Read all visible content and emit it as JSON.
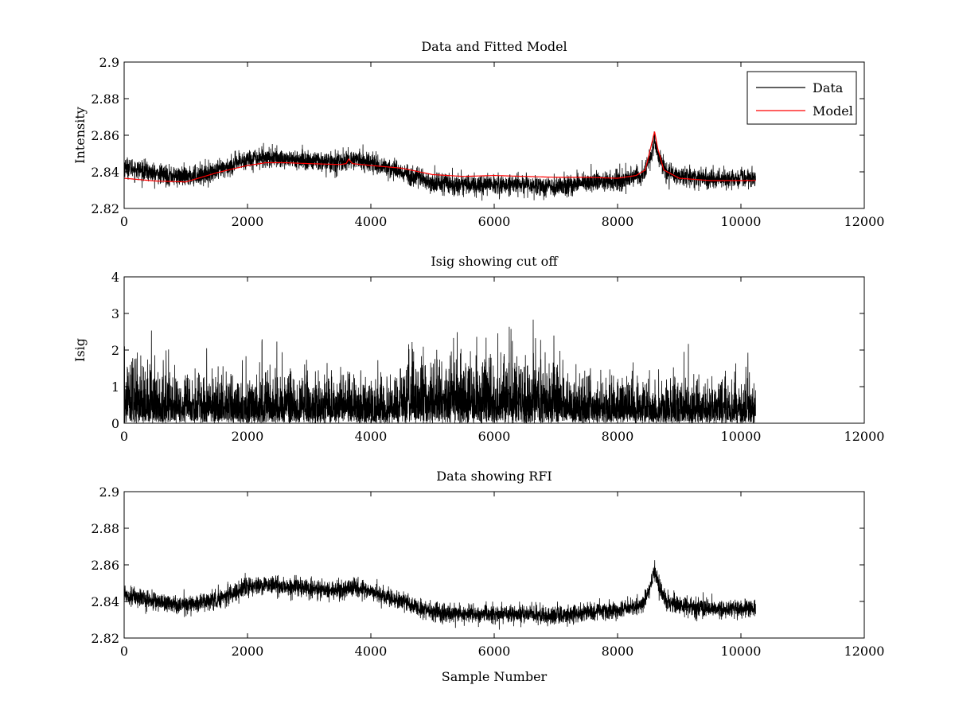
{
  "chart_data": [
    {
      "type": "line",
      "title": "Data and Fitted Model",
      "xlabel": "",
      "ylabel": "Intensity",
      "xlim": [
        0,
        12000
      ],
      "ylim": [
        2.82,
        2.9
      ],
      "xticks": [
        "0",
        "2000",
        "4000",
        "6000",
        "8000",
        "10000",
        "12000"
      ],
      "yticks": [
        "2.82",
        "2.84",
        "2.86",
        "2.88",
        "2.9"
      ],
      "legend": {
        "location": "top-right",
        "entries": [
          {
            "label": "Data",
            "color": "#000000"
          },
          {
            "label": "Model",
            "color": "#ff0000"
          }
        ]
      },
      "series": [
        {
          "name": "Data",
          "color": "#000000",
          "kind": "noisy",
          "n_samples": 10240,
          "noise_amplitude": 0.006,
          "baseline": {
            "x": [
              0,
              500,
              1000,
              1500,
              2000,
              2300,
              2600,
              3000,
              3500,
              3700,
              4000,
              4500,
              5000,
              5500,
              6000,
              6500,
              7000,
              7500,
              8000,
              8400,
              8550,
              8600,
              8650,
              8800,
              9000,
              9500,
              10000,
              10240
            ],
            "y": [
              2.843,
              2.839,
              2.837,
              2.84,
              2.847,
              2.848,
              2.847,
              2.846,
              2.845,
              2.847,
              2.845,
              2.84,
              2.834,
              2.833,
              2.833,
              2.833,
              2.832,
              2.834,
              2.835,
              2.838,
              2.85,
              2.858,
              2.85,
              2.839,
              2.838,
              2.836,
              2.836,
              2.837
            ]
          }
        },
        {
          "name": "Model",
          "color": "#ff0000",
          "kind": "smooth",
          "x": [
            0,
            500,
            1000,
            1500,
            2000,
            2300,
            2600,
            3000,
            3500,
            3600,
            3640,
            3700,
            4000,
            4500,
            5000,
            5500,
            6000,
            6500,
            7000,
            7500,
            8000,
            8300,
            8450,
            8550,
            8600,
            8650,
            8750,
            9000,
            9500,
            10000,
            10240
          ],
          "y": [
            2.8365,
            2.835,
            2.8345,
            2.8395,
            2.8435,
            2.845,
            2.845,
            2.8445,
            2.844,
            2.8445,
            2.847,
            2.8445,
            2.8435,
            2.842,
            2.8385,
            2.8375,
            2.838,
            2.8375,
            2.837,
            2.837,
            2.8365,
            2.838,
            2.841,
            2.855,
            2.862,
            2.853,
            2.841,
            2.8365,
            2.8352,
            2.8352,
            2.8353
          ]
        }
      ]
    },
    {
      "type": "line",
      "title": "Isig showing cut off",
      "xlabel": "",
      "ylabel": "Isig",
      "xlim": [
        0,
        12000
      ],
      "ylim": [
        0,
        4
      ],
      "xticks": [
        "0",
        "2000",
        "4000",
        "6000",
        "8000",
        "10000",
        "12000"
      ],
      "yticks": [
        "0",
        "1",
        "2",
        "3",
        "4"
      ],
      "series": [
        {
          "name": "Isig",
          "color": "#000000",
          "kind": "abs-noise",
          "n_samples": 10240,
          "envelope": {
            "x": [
              0,
              300,
              700,
              1500,
              2500,
              3500,
              4400,
              4700,
              5000,
              6000,
              7000,
              7100,
              7200,
              8000,
              9000,
              10240
            ],
            "y": [
              0.9,
              0.75,
              0.65,
              0.62,
              0.6,
              0.58,
              0.58,
              0.85,
              0.9,
              0.88,
              0.85,
              0.65,
              0.55,
              0.55,
              0.55,
              0.52
            ]
          }
        }
      ]
    },
    {
      "type": "line",
      "title": "Data showing RFI",
      "xlabel": "Sample Number",
      "ylabel": "",
      "xlim": [
        0,
        12000
      ],
      "ylim": [
        2.82,
        2.9
      ],
      "xticks": [
        "0",
        "2000",
        "4000",
        "6000",
        "8000",
        "10000",
        "12000"
      ],
      "yticks": [
        "2.82",
        "2.84",
        "2.86",
        "2.88",
        "2.9"
      ],
      "series": [
        {
          "name": "Data",
          "color": "#000000",
          "kind": "noisy",
          "n_samples": 10240,
          "noise_amplitude": 0.0055,
          "baseline": {
            "x": [
              0,
              500,
              1000,
              1500,
              2000,
              2300,
              2600,
              3000,
              3500,
              3700,
              4000,
              4500,
              5000,
              5500,
              6000,
              6500,
              7000,
              7500,
              8000,
              8400,
              8550,
              8600,
              8650,
              8800,
              9000,
              9500,
              10000,
              10240
            ],
            "y": [
              2.844,
              2.84,
              2.838,
              2.841,
              2.848,
              2.849,
              2.848,
              2.847,
              2.846,
              2.848,
              2.845,
              2.84,
              2.834,
              2.833,
              2.833,
              2.833,
              2.832,
              2.834,
              2.835,
              2.838,
              2.85,
              2.858,
              2.85,
              2.839,
              2.838,
              2.836,
              2.836,
              2.837
            ]
          }
        }
      ]
    }
  ]
}
